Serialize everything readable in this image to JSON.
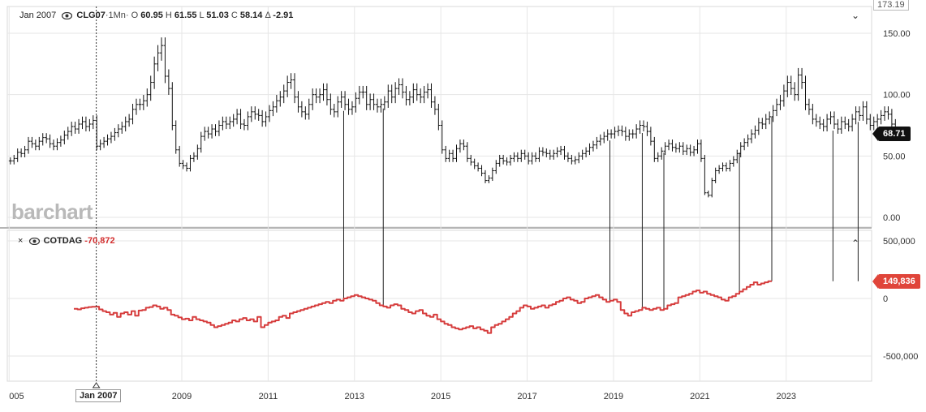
{
  "upper_legend": {
    "date": "Jan 2007",
    "symbol": "CLG07",
    "interval": "1Mn",
    "o_label": "O",
    "o": "60.95",
    "h_label": "H",
    "h": "61.55",
    "l_label": "L",
    "l": "51.03",
    "c_label": "C",
    "c": "58.14",
    "d_label": "Δ",
    "d": "-2.91"
  },
  "lower_legend": {
    "close_symbol": "×",
    "name": "COTDAG",
    "value": "-70,872"
  },
  "top_clipped_label": "173.19",
  "watermark": "barchart",
  "price_badge": "68.71",
  "cot_badge": "149,836",
  "cursor_label": "Jan 2007",
  "collapse_upper": "⌄",
  "collapse_lower": "⌃",
  "colors": {
    "price": "#111111",
    "cot": "#d63c3c",
    "grid": "#e6e6e6"
  },
  "chart_data": [
    {
      "type": "ohlc",
      "x_ticks": [
        "005",
        "2009",
        "2011",
        "2013",
        "2015",
        "2017",
        "2019",
        "2021",
        "2023"
      ],
      "y_ticks": [
        "0.00",
        "50.00",
        "100.00",
        "150.00"
      ],
      "ylim": [
        0,
        150
      ],
      "grid": true,
      "start": "2005-01",
      "closes": [
        46,
        48,
        53,
        52,
        55,
        62,
        60,
        58,
        62,
        65,
        64,
        60,
        58,
        61,
        63,
        67,
        70,
        74,
        72,
        76,
        78,
        74,
        76,
        79,
        58,
        60,
        62,
        64,
        66,
        69,
        72,
        74,
        78,
        80,
        88,
        92,
        92,
        95,
        100,
        110,
        125,
        134,
        140,
        115,
        105,
        75,
        55,
        44,
        42,
        40,
        48,
        50,
        56,
        66,
        70,
        68,
        72,
        70,
        75,
        78,
        76,
        78,
        80,
        84,
        76,
        75,
        82,
        86,
        84,
        83,
        78,
        82,
        87,
        90,
        95,
        98,
        103,
        110,
        112,
        98,
        90,
        86,
        84,
        92,
        100,
        98,
        100,
        104,
        96,
        88,
        86,
        94,
        98,
        92,
        88,
        90,
        97,
        102,
        102,
        92,
        96,
        92,
        90,
        92,
        94,
        103,
        98,
        105,
        108,
        102,
        96,
        98,
        104,
        100,
        98,
        102,
        104,
        94,
        88,
        75,
        55,
        48,
        52,
        48,
        56,
        60,
        58,
        48,
        45,
        42,
        40,
        36,
        30,
        32,
        38,
        44,
        48,
        46,
        45,
        48,
        50,
        48,
        52,
        50,
        46,
        50,
        48,
        54,
        53,
        52,
        50,
        52,
        54,
        55,
        50,
        48,
        46,
        47,
        50,
        52,
        54,
        57,
        59,
        62,
        64,
        66,
        68,
        68,
        70,
        71,
        70,
        66,
        68,
        68,
        72,
        75,
        74,
        70,
        62,
        48,
        50,
        54,
        58,
        60,
        57,
        56,
        58,
        54,
        56,
        53,
        55,
        60,
        48,
        20,
        18,
        30,
        38,
        40,
        42,
        40,
        44,
        47,
        52,
        58,
        61,
        64,
        68,
        71,
        77,
        76,
        80,
        82,
        87,
        92,
        95,
        103,
        110,
        105,
        100,
        116,
        110,
        92,
        88,
        80,
        78,
        76,
        74,
        80,
        82,
        76,
        72,
        78,
        76,
        74,
        80,
        86,
        83,
        90,
        80,
        75,
        78,
        80,
        83,
        86,
        84,
        76,
        70,
        68
      ],
      "annotation_lines": [
        "2012-10",
        "2013-09",
        "2018-12",
        "2019-09",
        "2020-03",
        "2021-12",
        "2022-09",
        "2024-02",
        "2024-09"
      ]
    },
    {
      "type": "line",
      "name": "COTDAG",
      "y_ticks": [
        "-500,000",
        "0",
        "500,000"
      ],
      "ylim": [
        -500000,
        500000
      ],
      "grid": true,
      "start": "2006-07",
      "values": [
        -90000,
        -95000,
        -85000,
        -80000,
        -75000,
        -72000,
        -70872,
        -95000,
        -110000,
        -120000,
        -140000,
        -125000,
        -160000,
        -130000,
        -120000,
        -140000,
        -110000,
        -150000,
        -105000,
        -100000,
        -80000,
        -75000,
        -60000,
        -70000,
        -90000,
        -80000,
        -100000,
        -140000,
        -150000,
        -165000,
        -180000,
        -175000,
        -190000,
        -160000,
        -180000,
        -190000,
        -200000,
        -210000,
        -230000,
        -250000,
        -240000,
        -230000,
        -220000,
        -210000,
        -190000,
        -200000,
        -180000,
        -170000,
        -190000,
        -180000,
        -200000,
        -160000,
        -250000,
        -230000,
        -210000,
        -200000,
        -190000,
        -160000,
        -150000,
        -170000,
        -130000,
        -120000,
        -110000,
        -100000,
        -90000,
        -80000,
        -70000,
        -60000,
        -50000,
        -40000,
        -30000,
        -40000,
        -20000,
        -10000,
        -20000,
        0,
        10000,
        20000,
        30000,
        20000,
        10000,
        0,
        -10000,
        -20000,
        -40000,
        -60000,
        -70000,
        -80000,
        -60000,
        -50000,
        -60000,
        -90000,
        -100000,
        -120000,
        -130000,
        -110000,
        -100000,
        -130000,
        -150000,
        -160000,
        -140000,
        -180000,
        -200000,
        -220000,
        -230000,
        -250000,
        -260000,
        -270000,
        -260000,
        -250000,
        -240000,
        -260000,
        -250000,
        -270000,
        -280000,
        -300000,
        -250000,
        -230000,
        -220000,
        -200000,
        -180000,
        -160000,
        -130000,
        -110000,
        -80000,
        -60000,
        -70000,
        -90000,
        -80000,
        -70000,
        -60000,
        -80000,
        -60000,
        -50000,
        -30000,
        -20000,
        0,
        10000,
        -10000,
        -20000,
        -40000,
        -30000,
        0,
        10000,
        20000,
        30000,
        10000,
        -10000,
        -30000,
        -20000,
        -10000,
        -30000,
        -100000,
        -130000,
        -150000,
        -120000,
        -110000,
        -100000,
        -80000,
        -90000,
        -100000,
        -90000,
        -80000,
        -100000,
        -90000,
        -60000,
        -50000,
        -40000,
        10000,
        20000,
        30000,
        40000,
        60000,
        70000,
        50000,
        60000,
        40000,
        30000,
        20000,
        10000,
        -10000,
        -20000,
        10000,
        20000,
        40000,
        60000,
        80000,
        100000,
        120000,
        140000,
        120000,
        130000,
        140000,
        149836
      ]
    }
  ]
}
